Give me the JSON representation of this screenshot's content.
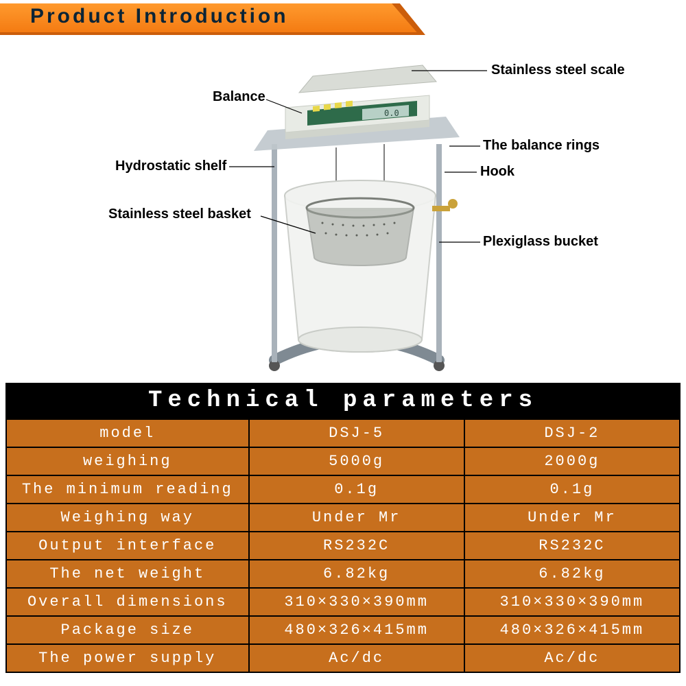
{
  "header": {
    "title": "Product Introduction",
    "banner_front_color": "#f47b12",
    "banner_back_color": "#cb5d0a",
    "text_color": "#0b2436"
  },
  "diagram": {
    "labels": {
      "stainless_scale": "Stainless steel scale",
      "balance": "Balance",
      "balance_rings": "The balance rings",
      "hydrostatic_shelf": "Hydrostatic shelf",
      "hook": "Hook",
      "stainless_basket": "Stainless steel basket",
      "plexiglass_bucket": "Plexiglass bucket"
    },
    "colors": {
      "scale_body": "#e8ebe5",
      "scale_top": "#d9dcd6",
      "panel_green": "#2e6b4a",
      "panel_btn": "#e8d84a",
      "lcd": "#b7d0c6",
      "stand": "#a9b2ba",
      "stand_dark": "#7f8a93",
      "bucket_fill": "#f1f2f0",
      "bucket_stroke": "#c9ccc7",
      "basket": "#7a7e78",
      "valve": "#caa23a"
    }
  },
  "table": {
    "title": "Technical parameters",
    "title_bg": "#000000",
    "title_color": "#ffffff",
    "cell_bg": "#c76f1d",
    "cell_color": "#ffffff",
    "border_color": "#000000",
    "font_family": "Courier New",
    "title_fontsize": 34,
    "cell_fontsize": 22,
    "columns": [
      "param",
      "DSJ-5",
      "DSJ-2"
    ],
    "rows": [
      [
        "model",
        "DSJ-5",
        "DSJ-2"
      ],
      [
        "weighing",
        "5000g",
        "2000g"
      ],
      [
        "The minimum reading",
        "0.1g",
        "0.1g"
      ],
      [
        "Weighing way",
        "Under Mr",
        "Under Mr"
      ],
      [
        "Output interface",
        "RS232C",
        "RS232C"
      ],
      [
        "The net weight",
        "6.82kg",
        "6.82kg"
      ],
      [
        "Overall dimensions",
        "310×330×390mm",
        "310×330×390mm"
      ],
      [
        "Package size",
        "480×326×415mm",
        "480×326×415mm"
      ],
      [
        "The power supply",
        "Ac/dc",
        "Ac/dc"
      ]
    ]
  }
}
